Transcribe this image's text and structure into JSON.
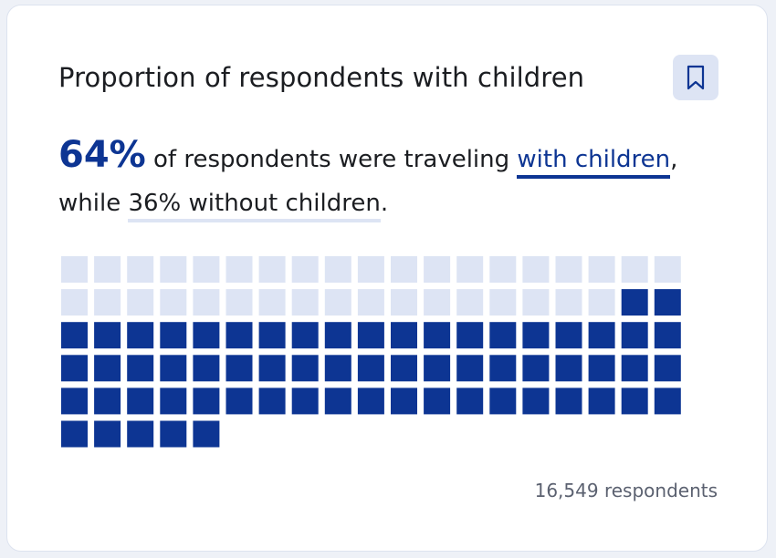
{
  "card": {
    "title": "Proportion of respondents with children",
    "bookmark_icon": "bookmark-icon",
    "summary": {
      "highlight_value": "64%",
      "text_before_link": " of respondents were traveling ",
      "with_link": "with children",
      "text_after_with": ",",
      "text_while": "while ",
      "without_link": "36% without children",
      "text_end": "."
    },
    "footnote": "16,549 respondents"
  },
  "colors": {
    "accent": "#0d3593",
    "light": "#dde4f4",
    "text": "#1b1d21",
    "muted": "#5b6170"
  },
  "chart_data": {
    "type": "waffle",
    "columns": 19,
    "series": [
      {
        "name": "without children",
        "percent": 36,
        "squares": 36,
        "color": "#dde4f4"
      },
      {
        "name": "with children",
        "percent": 64,
        "squares": 64,
        "color": "#0d3593"
      }
    ],
    "total_squares": 100
  }
}
